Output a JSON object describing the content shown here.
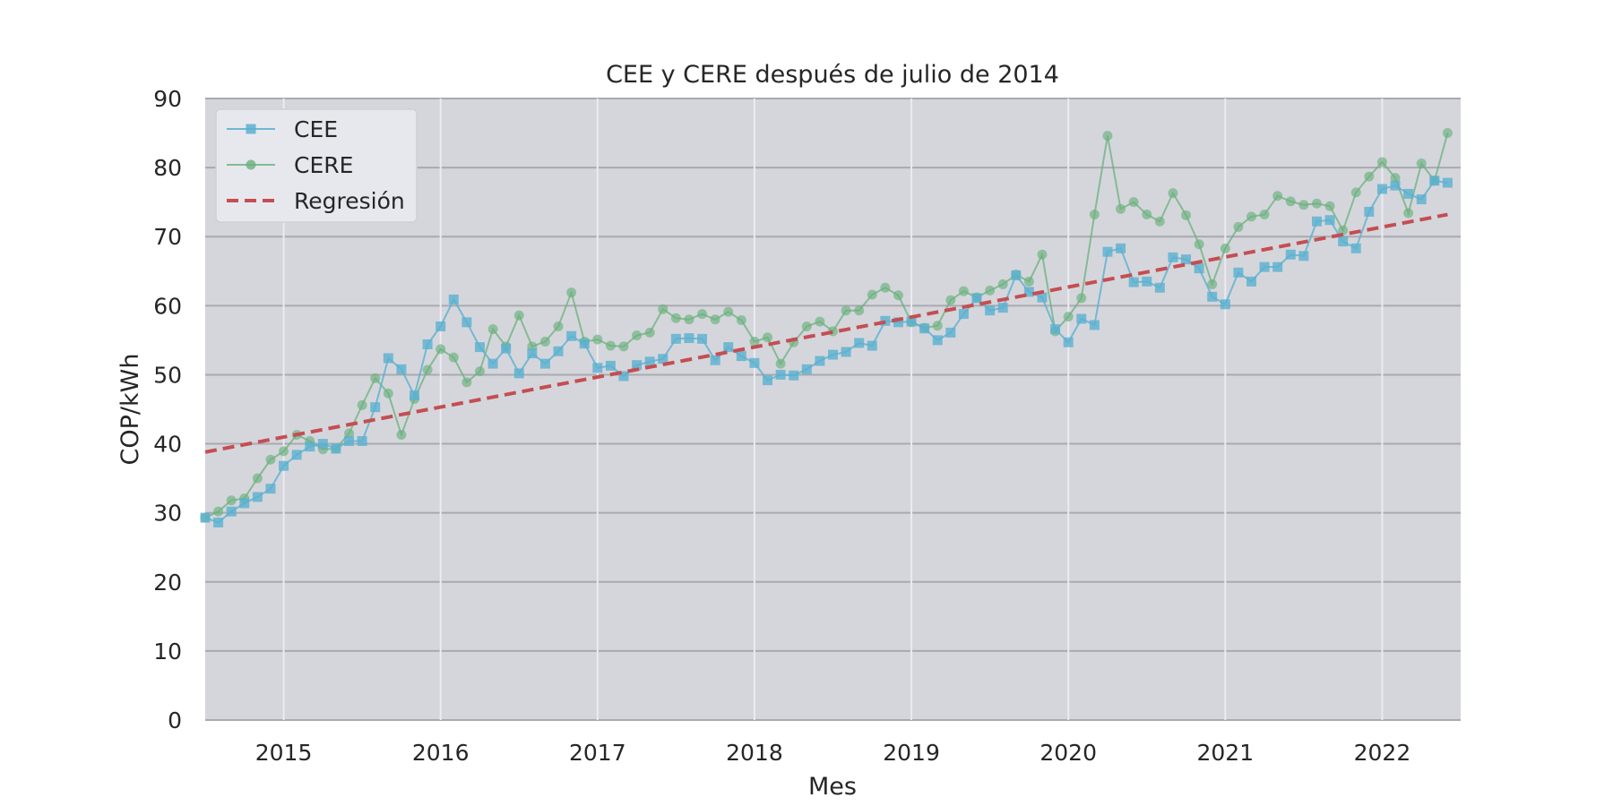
{
  "chart_data": {
    "type": "line",
    "title": "CEE y CERE después de julio de 2014",
    "xlabel": "Mes",
    "ylabel": "COP/kWh",
    "ylim": [
      0,
      90
    ],
    "yticks": [
      0,
      10,
      20,
      30,
      40,
      50,
      60,
      70,
      80,
      90
    ],
    "xlim": [
      "2014-07",
      "2022-07"
    ],
    "xticks": [
      "2015",
      "2016",
      "2017",
      "2018",
      "2019",
      "2020",
      "2021",
      "2022"
    ],
    "grid": true,
    "legend_position": "upper-left",
    "x": [
      "2014-07",
      "2014-08",
      "2014-09",
      "2014-10",
      "2014-11",
      "2014-12",
      "2015-01",
      "2015-02",
      "2015-03",
      "2015-04",
      "2015-05",
      "2015-06",
      "2015-07",
      "2015-08",
      "2015-09",
      "2015-10",
      "2015-11",
      "2015-12",
      "2016-01",
      "2016-02",
      "2016-03",
      "2016-04",
      "2016-05",
      "2016-06",
      "2016-07",
      "2016-08",
      "2016-09",
      "2016-10",
      "2016-11",
      "2016-12",
      "2017-01",
      "2017-02",
      "2017-03",
      "2017-04",
      "2017-05",
      "2017-06",
      "2017-07",
      "2017-08",
      "2017-09",
      "2017-10",
      "2017-11",
      "2017-12",
      "2018-01",
      "2018-02",
      "2018-03",
      "2018-04",
      "2018-05",
      "2018-06",
      "2018-07",
      "2018-08",
      "2018-09",
      "2018-10",
      "2018-11",
      "2018-12",
      "2019-01",
      "2019-02",
      "2019-03",
      "2019-04",
      "2019-05",
      "2019-06",
      "2019-07",
      "2019-08",
      "2019-09",
      "2019-10",
      "2019-11",
      "2019-12",
      "2020-01",
      "2020-02",
      "2020-03",
      "2020-04",
      "2020-05",
      "2020-06",
      "2020-07",
      "2020-08",
      "2020-09",
      "2020-10",
      "2020-11",
      "2020-12",
      "2021-01",
      "2021-02",
      "2021-03",
      "2021-04",
      "2021-05",
      "2021-06",
      "2021-07",
      "2021-08",
      "2021-09",
      "2021-10",
      "2021-11",
      "2021-12",
      "2022-01",
      "2022-02",
      "2022-03",
      "2022-04",
      "2022-05",
      "2022-06"
    ],
    "series": [
      {
        "name": "CEE",
        "color": "#5ab0cf",
        "marker": "square",
        "values": [
          29.3,
          28.6,
          30.2,
          31.4,
          32.3,
          33.5,
          36.8,
          38.4,
          39.6,
          40.0,
          39.3,
          40.4,
          40.4,
          45.3,
          52.4,
          50.8,
          47.0,
          54.4,
          57.0,
          60.9,
          57.6,
          54.0,
          51.6,
          53.8,
          50.2,
          53.1,
          51.6,
          53.4,
          55.6,
          54.5,
          51.0,
          51.3,
          49.8,
          51.4,
          51.9,
          52.3,
          55.2,
          55.3,
          55.2,
          52.1,
          54.0,
          52.7,
          51.7,
          49.2,
          50.0,
          49.9,
          50.8,
          52.0,
          52.9,
          53.3,
          54.6,
          54.2,
          57.8,
          57.6,
          57.7,
          56.7,
          55.0,
          56.1,
          58.8,
          61.1,
          59.3,
          59.7,
          64.4,
          62.0,
          61.2,
          56.6,
          54.7,
          58.1,
          57.2,
          67.8,
          68.3,
          63.4,
          63.5,
          62.6,
          67.0,
          66.7,
          65.4,
          61.3,
          60.2,
          64.8,
          63.5,
          65.6,
          65.6,
          67.4,
          67.2,
          72.2,
          72.4,
          69.3,
          68.3,
          73.6,
          76.9,
          77.4,
          76.2,
          75.4,
          78.1,
          77.8
        ]
      },
      {
        "name": "CERE",
        "color": "#6ab07d",
        "marker": "circle",
        "values": [
          29.3,
          30.2,
          31.8,
          32.1,
          35.0,
          37.7,
          38.9,
          41.3,
          40.4,
          39.2,
          39.3,
          41.5,
          45.6,
          49.5,
          47.3,
          41.3,
          46.5,
          50.7,
          53.7,
          52.5,
          48.9,
          50.5,
          56.6,
          54.1,
          58.6,
          54.1,
          54.8,
          57.0,
          61.9,
          54.8,
          55.1,
          54.2,
          54.1,
          55.7,
          56.1,
          59.5,
          58.2,
          58.0,
          58.8,
          58.0,
          59.1,
          57.9,
          54.8,
          55.4,
          51.6,
          54.7,
          57.0,
          57.7,
          56.3,
          59.3,
          59.3,
          61.6,
          62.6,
          61.5,
          57.6,
          56.8,
          57.1,
          60.8,
          62.1,
          61.2,
          62.2,
          63.1,
          64.5,
          63.5,
          67.4,
          56.3,
          58.4,
          61.1,
          73.2,
          84.6,
          74.0,
          75.0,
          73.2,
          72.2,
          76.3,
          73.1,
          68.9,
          63.1,
          68.3,
          71.4,
          72.9,
          73.2,
          75.9,
          75.1,
          74.6,
          74.8,
          74.4,
          70.9,
          76.4,
          78.7,
          80.8,
          78.5,
          73.4,
          80.6,
          78.1,
          85.0
        ]
      },
      {
        "name": "Regresión",
        "color": "#c44e52",
        "style": "dashed",
        "x": [
          "2014-07",
          "2022-06"
        ],
        "values": [
          38.8,
          73.2
        ]
      }
    ]
  }
}
